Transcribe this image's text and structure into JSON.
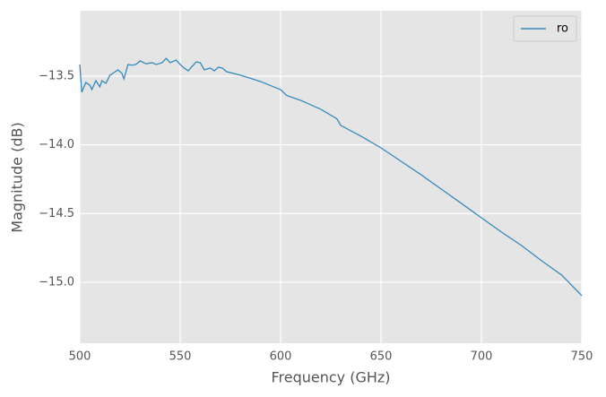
{
  "chart_data": {
    "type": "line",
    "xlabel": "Frequency (GHz)",
    "ylabel": "Magnitude (dB)",
    "x": [
      500,
      501,
      503,
      505,
      506,
      508,
      510,
      511,
      513,
      515,
      517,
      519,
      521,
      522,
      524,
      526,
      528,
      530,
      533,
      536,
      538,
      541,
      543,
      545,
      548,
      550,
      552,
      554,
      556,
      558,
      560,
      562,
      565,
      567,
      569,
      571,
      573,
      580,
      590,
      600,
      603,
      610,
      620,
      628,
      630,
      640,
      650,
      660,
      670,
      680,
      690,
      700,
      710,
      720,
      730,
      740,
      750
    ],
    "series": [
      {
        "name": "ro",
        "color": "#348abd",
        "values": [
          -13.415,
          -13.617,
          -13.546,
          -13.565,
          -13.598,
          -13.533,
          -13.578,
          -13.533,
          -13.552,
          -13.493,
          -13.474,
          -13.454,
          -13.48,
          -13.52,
          -13.415,
          -13.42,
          -13.415,
          -13.389,
          -13.41,
          -13.402,
          -13.415,
          -13.402,
          -13.37,
          -13.402,
          -13.383,
          -13.415,
          -13.441,
          -13.461,
          -13.428,
          -13.396,
          -13.402,
          -13.454,
          -13.441,
          -13.461,
          -13.435,
          -13.441,
          -13.467,
          -13.493,
          -13.539,
          -13.598,
          -13.64,
          -13.676,
          -13.741,
          -13.81,
          -13.859,
          -13.937,
          -14.022,
          -14.12,
          -14.218,
          -14.322,
          -14.426,
          -14.531,
          -14.635,
          -14.733,
          -14.844,
          -14.948,
          -15.098
        ]
      }
    ],
    "xlim": [
      500,
      750
    ],
    "xticks": [
      500,
      550,
      600,
      650,
      700,
      750
    ],
    "ylim": [
      -15.444,
      -13.024
    ],
    "yticks": [
      {
        "value": -13.5,
        "label": "−13.5"
      },
      {
        "value": -14.0,
        "label": "−14.0"
      },
      {
        "value": -14.5,
        "label": "−14.5"
      },
      {
        "value": -15.0,
        "label": "−15.0"
      }
    ],
    "grid": true,
    "legend": "upper right"
  }
}
